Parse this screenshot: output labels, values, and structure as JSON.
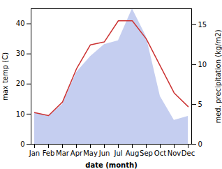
{
  "chart_data": {
    "type": "line",
    "xlabel": "date (month)",
    "ylabel": "max temp (C)",
    "y2label": "med. precipitation (kg/m2)",
    "categories": [
      "Jan",
      "Feb",
      "Mar",
      "Apr",
      "May",
      "Jun",
      "Jul",
      "Aug",
      "Sep",
      "Oct",
      "Nov",
      "Dec"
    ],
    "series": [
      {
        "type": "area",
        "axis": "y2",
        "color": "#c5cef0",
        "values": [
          4.0,
          3.5,
          5.0,
          9.0,
          11.0,
          12.5,
          13.0,
          17.0,
          13.5,
          6.0,
          3.0,
          3.5
        ]
      },
      {
        "type": "line",
        "color": "#cc3333",
        "values": [
          10.5,
          9.5,
          14.0,
          25.0,
          33.0,
          34.0,
          41.0,
          41.0,
          35.0,
          26.0,
          17.0,
          12.5
        ]
      }
    ],
    "ylim": [
      0,
      45
    ],
    "yticks": [
      0,
      10,
      20,
      30,
      40
    ],
    "y2lim": [
      0,
      17
    ],
    "y2ticks": [
      0,
      5,
      10,
      15
    ],
    "grid": false
  }
}
